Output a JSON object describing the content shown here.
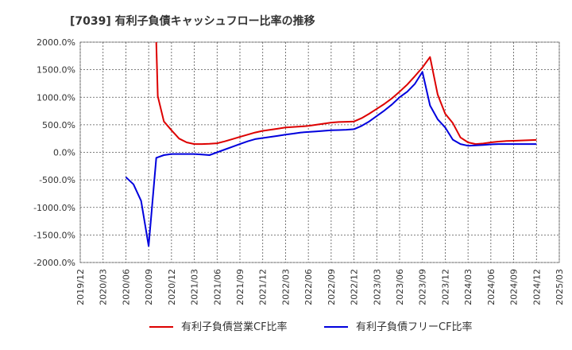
{
  "chart_data": {
    "type": "line",
    "title": "[7039]  有利子負債キャッシュフロー比率の推移",
    "xlabel": "",
    "ylabel": "",
    "x_ticks": [
      "2019/12",
      "2020/03",
      "2020/06",
      "2020/09",
      "2020/12",
      "2021/03",
      "2021/06",
      "2021/09",
      "2021/12",
      "2022/03",
      "2022/06",
      "2022/09",
      "2022/12",
      "2023/03",
      "2023/06",
      "2023/09",
      "2023/12",
      "2024/03",
      "2024/06",
      "2024/09",
      "2024/12",
      "2025/03"
    ],
    "y_ticks": [
      2000,
      1500,
      1000,
      500,
      0,
      -500,
      -1000,
      -1500,
      -2000
    ],
    "y_tick_labels": [
      "2000.0%",
      "1500.0%",
      "1000.0%",
      "500.0%",
      "0.0%",
      "-500.0%",
      "-1000.0%",
      "-1500.0%",
      "-2000.0%"
    ],
    "ylim": [
      -2000,
      2000
    ],
    "xlim": [
      0,
      63
    ],
    "grid": true,
    "legend_position": "bottom-center",
    "series": [
      {
        "name": "有利子負債営業CF比率",
        "color": "#dd0000",
        "points": [
          [
            10,
            2000
          ],
          [
            10.2,
            1020
          ],
          [
            11,
            560
          ],
          [
            12,
            400
          ],
          [
            13,
            250
          ],
          [
            14,
            180
          ],
          [
            15,
            150
          ],
          [
            16,
            150
          ],
          [
            17,
            155
          ],
          [
            18,
            165
          ],
          [
            19,
            200
          ],
          [
            20,
            240
          ],
          [
            21,
            280
          ],
          [
            22,
            320
          ],
          [
            23,
            360
          ],
          [
            24,
            390
          ],
          [
            25,
            410
          ],
          [
            26,
            430
          ],
          [
            27,
            450
          ],
          [
            28,
            460
          ],
          [
            29,
            470
          ],
          [
            30,
            480
          ],
          [
            31,
            500
          ],
          [
            32,
            520
          ],
          [
            33,
            540
          ],
          [
            34,
            550
          ],
          [
            35,
            555
          ],
          [
            36,
            560
          ],
          [
            37,
            620
          ],
          [
            38,
            700
          ],
          [
            39,
            790
          ],
          [
            40,
            880
          ],
          [
            41,
            980
          ],
          [
            42,
            1100
          ],
          [
            43,
            1230
          ],
          [
            44,
            1380
          ],
          [
            45,
            1540
          ],
          [
            46,
            1730
          ],
          [
            47,
            1050
          ],
          [
            48,
            700
          ],
          [
            49,
            530
          ],
          [
            50,
            270
          ],
          [
            51,
            180
          ],
          [
            52,
            150
          ],
          [
            53,
            160
          ],
          [
            54,
            180
          ],
          [
            55,
            195
          ],
          [
            56,
            205
          ],
          [
            57,
            210
          ],
          [
            58,
            215
          ],
          [
            59,
            220
          ],
          [
            60,
            225
          ]
        ]
      },
      {
        "name": "有利子負債フリーCF比率",
        "color": "#0000dd",
        "points": [
          [
            6,
            -450
          ],
          [
            7,
            -580
          ],
          [
            8,
            -880
          ],
          [
            9,
            -1700
          ],
          [
            10,
            -100
          ],
          [
            11,
            -50
          ],
          [
            12,
            -30
          ],
          [
            13,
            -30
          ],
          [
            14,
            -30
          ],
          [
            15,
            -30
          ],
          [
            16,
            -40
          ],
          [
            17,
            -50
          ],
          [
            18,
            0
          ],
          [
            19,
            50
          ],
          [
            20,
            100
          ],
          [
            21,
            150
          ],
          [
            22,
            200
          ],
          [
            23,
            240
          ],
          [
            24,
            260
          ],
          [
            25,
            280
          ],
          [
            26,
            300
          ],
          [
            27,
            320
          ],
          [
            28,
            340
          ],
          [
            29,
            360
          ],
          [
            30,
            370
          ],
          [
            31,
            380
          ],
          [
            32,
            390
          ],
          [
            33,
            400
          ],
          [
            34,
            405
          ],
          [
            35,
            410
          ],
          [
            36,
            420
          ],
          [
            37,
            480
          ],
          [
            38,
            560
          ],
          [
            39,
            660
          ],
          [
            40,
            760
          ],
          [
            41,
            870
          ],
          [
            42,
            1000
          ],
          [
            43,
            1100
          ],
          [
            44,
            1240
          ],
          [
            45,
            1460
          ],
          [
            46,
            850
          ],
          [
            47,
            600
          ],
          [
            48,
            450
          ],
          [
            49,
            230
          ],
          [
            50,
            150
          ],
          [
            51,
            120
          ],
          [
            52,
            125
          ],
          [
            53,
            135
          ],
          [
            54,
            145
          ],
          [
            55,
            150
          ],
          [
            56,
            150
          ],
          [
            57,
            150
          ],
          [
            58,
            150
          ],
          [
            59,
            150
          ],
          [
            60,
            150
          ]
        ]
      }
    ]
  }
}
